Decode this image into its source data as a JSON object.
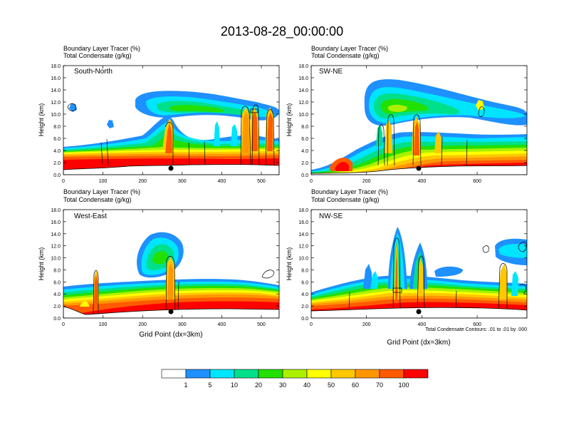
{
  "page": {
    "title": "2013-08-28_00:00:00"
  },
  "colorbar": {
    "levels": [
      "1",
      "5",
      "10",
      "20",
      "30",
      "40",
      "50",
      "60",
      "70",
      "100"
    ],
    "colors": [
      "#ffffff",
      "#1e90ff",
      "#00e5ff",
      "#00e08a",
      "#22e000",
      "#aaf000",
      "#ffff00",
      "#ffc800",
      "#ff9600",
      "#ff5a00",
      "#ff0000"
    ]
  },
  "contour_note": "Total Condensate Contours: .01 to .01 by .000",
  "chart_data": [
    {
      "type": "contour",
      "title": "South-North",
      "subtitle_line1": "Boundary Layer Tracer   (%)",
      "subtitle_line2": "Total Condensate   (g/kg)",
      "ylabel": "Height (km)",
      "xlabel": "",
      "xlim": [
        0,
        545
      ],
      "ylim": [
        0,
        18
      ],
      "xticks": [
        "0",
        "100",
        "200",
        "300",
        "400",
        "500"
      ],
      "yticks": [
        "0.0",
        "2.0",
        "4.0",
        "6.0",
        "8.0",
        "10.0",
        "12.0",
        "14.0",
        "16.0",
        "18.0"
      ],
      "marker_x": 275
    },
    {
      "type": "contour",
      "title": "SW-NE",
      "subtitle_line1": "Boundary Layer Tracer   (%)",
      "subtitle_line2": "Total Condensate   (g/kg)",
      "ylabel": "Height (km)",
      "xlabel": "",
      "xlim": [
        0,
        780
      ],
      "ylim": [
        0,
        18
      ],
      "xticks": [
        "0",
        "200",
        "400",
        "600"
      ],
      "yticks": [
        "0.0",
        "2.0",
        "4.0",
        "6.0",
        "8.0",
        "10.0",
        "12.0",
        "14.0",
        "16.0",
        "18.0"
      ],
      "marker_x": 390
    },
    {
      "type": "contour",
      "title": "West-East",
      "subtitle_line1": "Boundary Layer Tracer   (%)",
      "subtitle_line2": "Total Condensate   (g/kg)",
      "ylabel": "Height (km)",
      "xlabel": "Grid Point (dx=3km)",
      "xlim": [
        0,
        545
      ],
      "ylim": [
        0,
        18
      ],
      "xticks": [
        "0",
        "100",
        "200",
        "300",
        "400",
        "500"
      ],
      "yticks": [
        "0.0",
        "2.0",
        "4.0",
        "6.0",
        "8.0",
        "10.0",
        "12.0",
        "14.0",
        "16.0",
        "18.0"
      ],
      "marker_x": 275
    },
    {
      "type": "contour",
      "title": "NW-SE",
      "subtitle_line1": "Boundary Layer Tracer   (%)",
      "subtitle_line2": "Total Condensate   (g/kg)",
      "ylabel": "Height (km)",
      "xlabel": "Grid Point (dx=3km)",
      "xlim": [
        0,
        780
      ],
      "ylim": [
        0,
        18
      ],
      "xticks": [
        "0",
        "200",
        "400",
        "600"
      ],
      "yticks": [
        "0.0",
        "2.0",
        "4.0",
        "6.0",
        "8.0",
        "10.0",
        "12.0",
        "14.0",
        "16.0",
        "18.0"
      ],
      "marker_x": 390
    }
  ]
}
